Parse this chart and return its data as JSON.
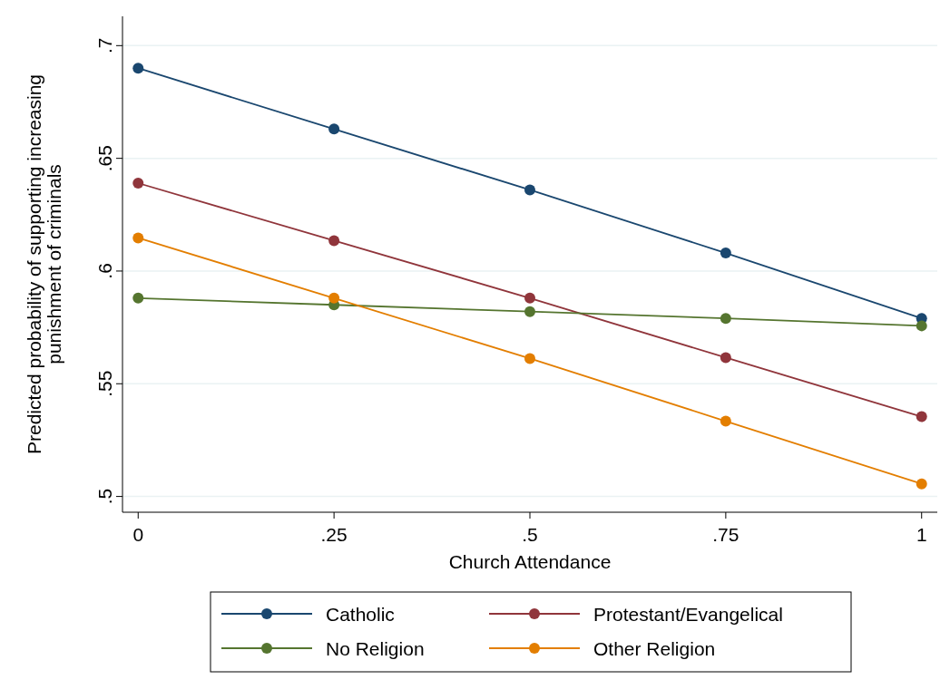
{
  "chart_data": {
    "type": "line",
    "xlabel": "Church Attendance",
    "ylabel": "Predicted probability of supporting increasing punishment of criminals",
    "x": [
      0,
      0.25,
      0.5,
      0.75,
      1
    ],
    "xlim": [
      -0.02,
      1.02
    ],
    "xticks": [
      {
        "value": 0,
        "label": "0"
      },
      {
        "value": 0.25,
        "label": ".25"
      },
      {
        "value": 0.5,
        "label": ".5"
      },
      {
        "value": 0.75,
        "label": ".75"
      },
      {
        "value": 1,
        "label": "1"
      }
    ],
    "ylim": [
      0.493,
      0.713
    ],
    "yticks": [
      {
        "value": 0.5,
        "label": ".5"
      },
      {
        "value": 0.55,
        "label": ".55"
      },
      {
        "value": 0.6,
        "label": ".6"
      },
      {
        "value": 0.65,
        "label": ".65"
      },
      {
        "value": 0.7,
        "label": ".7"
      }
    ],
    "grid": "y",
    "legend": "bottom",
    "marker": "circle",
    "line_style": "solid",
    "series": [
      {
        "name": "Catholic",
        "color": "#1a476f",
        "values": [
          0.69,
          0.663,
          0.636,
          0.608,
          0.579
        ]
      },
      {
        "name": "Protestant/Evangelical",
        "color": "#90353b",
        "values": [
          0.639,
          0.6135,
          0.588,
          0.5616,
          0.5354
        ]
      },
      {
        "name": "No Religion",
        "color": "#55752f",
        "values": [
          0.588,
          0.585,
          0.582,
          0.579,
          0.5757
        ]
      },
      {
        "name": "Other Religion",
        "color": "#e37e00",
        "values": [
          0.6147,
          0.588,
          0.5612,
          0.5334,
          0.5056
        ]
      }
    ]
  }
}
